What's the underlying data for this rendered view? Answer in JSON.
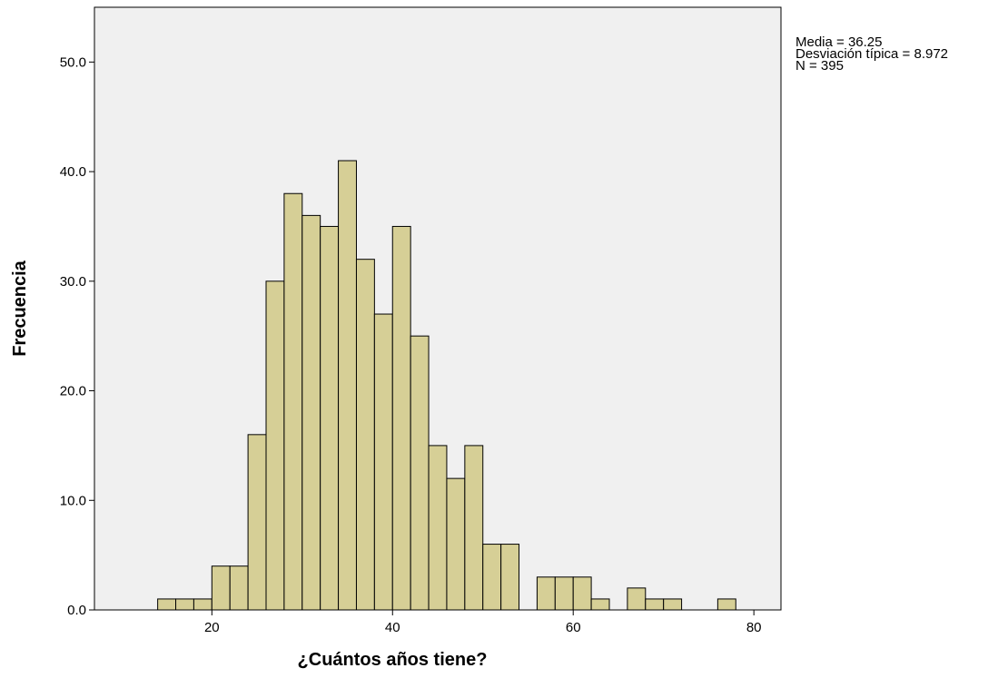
{
  "chart_data": {
    "type": "bar",
    "subtype": "histogram",
    "xlabel": "¿Cuántos años tiene?",
    "ylabel": "Frecuencia",
    "xlim": [
      7,
      83
    ],
    "ylim": [
      0,
      55
    ],
    "x_ticks": [
      20,
      40,
      60,
      80
    ],
    "y_ticks": [
      0,
      10,
      20,
      30,
      40,
      50
    ],
    "y_tick_labels": [
      "0.0",
      "10.0",
      "20.0",
      "30.0",
      "40.0",
      "50.0"
    ],
    "bin_width": 2,
    "bin_starts": [
      14,
      16,
      18,
      20,
      22,
      24,
      26,
      28,
      30,
      32,
      34,
      36,
      38,
      40,
      42,
      44,
      46,
      48,
      50,
      52,
      54,
      56,
      58,
      60,
      62,
      64,
      66,
      68,
      70,
      72,
      74,
      76
    ],
    "values": [
      1,
      1,
      1,
      4,
      4,
      16,
      30,
      38,
      36,
      35,
      41,
      32,
      27,
      35,
      25,
      15,
      12,
      15,
      6,
      6,
      0,
      3,
      3,
      3,
      1,
      0,
      2,
      1,
      1,
      0,
      0,
      1
    ],
    "grid": false,
    "bar_color": "#d6cf96",
    "plot_background": "#f0f0f0",
    "stats": {
      "mean_label": "Media = 36.25",
      "sd_label": "Desviación típica = 8.972",
      "n_label": "N = 395"
    }
  }
}
